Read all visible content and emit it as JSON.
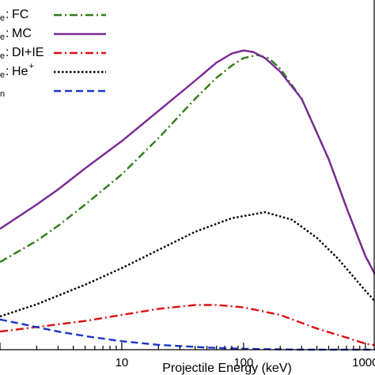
{
  "chart_data": {
    "type": "line",
    "xlabel": "Projectile Energy (keV)",
    "xscale": "log",
    "xlim": [
      1,
      1200
    ],
    "ylim": [
      0,
      1
    ],
    "x_ticks": [
      {
        "value": 10,
        "label": "10"
      },
      {
        "value": 100,
        "label": "100"
      },
      {
        "value": 1000,
        "label": "1000"
      }
    ],
    "legend_position": "top-left",
    "series": [
      {
        "name": "FC",
        "legend_prefix": "e",
        "color": "#2e7d16",
        "dash": "dashdot",
        "points": [
          [
            1,
            0.29
          ],
          [
            2,
            0.36
          ],
          [
            3,
            0.41
          ],
          [
            5,
            0.48
          ],
          [
            10,
            0.58
          ],
          [
            20,
            0.7
          ],
          [
            40,
            0.83
          ],
          [
            60,
            0.9
          ],
          [
            80,
            0.94
          ],
          [
            100,
            0.965
          ],
          [
            130,
            0.975
          ],
          [
            160,
            0.965
          ],
          [
            200,
            0.93
          ],
          [
            300,
            0.83
          ],
          [
            500,
            0.63
          ],
          [
            700,
            0.47
          ],
          [
            1000,
            0.31
          ],
          [
            1200,
            0.25
          ]
        ]
      },
      {
        "name": "MC",
        "legend_prefix": "e",
        "color": "#7a2896",
        "dash": "solid",
        "points": [
          [
            1,
            0.4
          ],
          [
            2,
            0.48
          ],
          [
            3,
            0.53
          ],
          [
            5,
            0.6
          ],
          [
            10,
            0.69
          ],
          [
            20,
            0.79
          ],
          [
            40,
            0.89
          ],
          [
            60,
            0.95
          ],
          [
            80,
            0.98
          ],
          [
            100,
            0.99
          ],
          [
            120,
            0.985
          ],
          [
            150,
            0.965
          ],
          [
            200,
            0.92
          ],
          [
            300,
            0.83
          ],
          [
            500,
            0.63
          ],
          [
            700,
            0.47
          ],
          [
            1000,
            0.31
          ],
          [
            1200,
            0.25
          ]
        ]
      },
      {
        "name": "DI+IE",
        "legend_prefix": "e",
        "color": "#dd1010",
        "dash": "dashdot",
        "points": [
          [
            1,
            0.06
          ],
          [
            2,
            0.075
          ],
          [
            5,
            0.095
          ],
          [
            10,
            0.115
          ],
          [
            20,
            0.135
          ],
          [
            40,
            0.148
          ],
          [
            60,
            0.148
          ],
          [
            100,
            0.14
          ],
          [
            200,
            0.115
          ],
          [
            400,
            0.07
          ],
          [
            700,
            0.04
          ],
          [
            1000,
            0.02
          ],
          [
            1200,
            0.015
          ]
        ]
      },
      {
        "name": "He",
        "name_sup": "+",
        "legend_prefix": "e",
        "color": "#000000",
        "dash": "dotted",
        "points": [
          [
            1,
            0.11
          ],
          [
            2,
            0.15
          ],
          [
            5,
            0.215
          ],
          [
            10,
            0.27
          ],
          [
            20,
            0.33
          ],
          [
            40,
            0.39
          ],
          [
            80,
            0.435
          ],
          [
            150,
            0.455
          ],
          [
            250,
            0.43
          ],
          [
            400,
            0.37
          ],
          [
            600,
            0.3
          ],
          [
            1000,
            0.195
          ],
          [
            1200,
            0.16
          ]
        ]
      },
      {
        "name": "",
        "legend_prefix": "n",
        "color": "#1a33cc",
        "dash": "dashed",
        "points": [
          [
            1,
            0.1
          ],
          [
            2,
            0.075
          ],
          [
            3,
            0.06
          ],
          [
            5,
            0.045
          ],
          [
            10,
            0.028
          ],
          [
            20,
            0.016
          ],
          [
            50,
            0.007
          ],
          [
            100,
            0.003
          ],
          [
            300,
            0.0
          ],
          [
            1200,
            0.0
          ]
        ]
      }
    ]
  }
}
